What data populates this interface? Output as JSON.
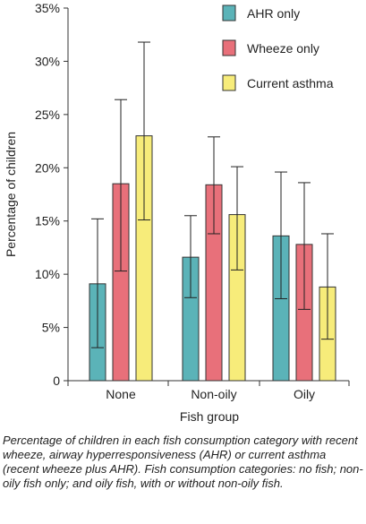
{
  "chart_data": {
    "type": "bar",
    "xlabel": "Fish group",
    "ylabel": "Percentage of children",
    "categories": [
      "None",
      "Non-oily",
      "Oily"
    ],
    "ylim": [
      0,
      35
    ],
    "yticks": [
      {
        "value": 0,
        "label": "0"
      },
      {
        "value": 5,
        "label": "5%"
      },
      {
        "value": 10,
        "label": "10%"
      },
      {
        "value": 15,
        "label": "15%"
      },
      {
        "value": 20,
        "label": "20%"
      },
      {
        "value": 25,
        "label": "25%"
      },
      {
        "value": 30,
        "label": "30%"
      },
      {
        "value": 35,
        "label": "35%"
      }
    ],
    "legend_position": "top-right",
    "grid": false,
    "series": [
      {
        "name": "AHR only",
        "color": "#5bb3b8",
        "values": [
          9.1,
          11.6,
          13.6
        ],
        "lower": [
          3.1,
          7.8,
          7.7
        ],
        "upper": [
          15.2,
          15.5,
          19.6
        ]
      },
      {
        "name": "Wheeze only",
        "color": "#e8707a",
        "values": [
          18.5,
          18.4,
          12.8
        ],
        "lower": [
          10.3,
          13.8,
          6.7
        ],
        "upper": [
          26.4,
          22.9,
          18.6
        ]
      },
      {
        "name": "Current asthma",
        "color": "#f7ec7a",
        "values": [
          23.0,
          15.6,
          8.8
        ],
        "lower": [
          15.1,
          10.4,
          3.9
        ],
        "upper": [
          31.8,
          20.1,
          13.8
        ]
      }
    ]
  },
  "caption": "Percentage of children in each fish consumption category with recent wheeze, airway hyperresponsiveness (AHR) or current asthma (recent wheeze plus AHR). Fish consumption categories: no fish; non-oily fish only; and oily fish, with or without non-oily fish."
}
